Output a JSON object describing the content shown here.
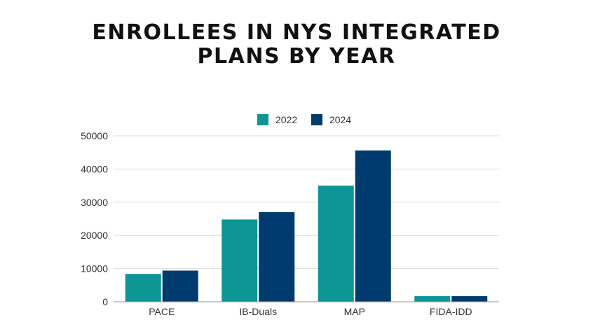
{
  "title": {
    "line1": "ENROLLEES IN NYS INTEGRATED",
    "line2": "PLANS BY YEAR"
  },
  "chart_data": {
    "type": "bar",
    "title": "ENROLLEES IN NYS INTEGRATED PLANS BY YEAR",
    "categories": [
      "PACE",
      "IB-Duals",
      "MAP",
      "FIDA-IDD"
    ],
    "series": [
      {
        "name": "2022",
        "color": "#0e9596",
        "values": [
          8400,
          24800,
          35000,
          1700
        ]
      },
      {
        "name": "2024",
        "color": "#003b6f",
        "values": [
          9400,
          27000,
          45600,
          1700
        ]
      }
    ],
    "ylim": [
      0,
      50000
    ],
    "yticks": [
      0,
      10000,
      20000,
      30000,
      40000,
      50000
    ],
    "ytick_labels": [
      "0",
      "10000",
      "20000",
      "30000",
      "40000",
      "50000"
    ],
    "xlabel": "",
    "ylabel": "",
    "grid": true,
    "legend": "top-center"
  }
}
